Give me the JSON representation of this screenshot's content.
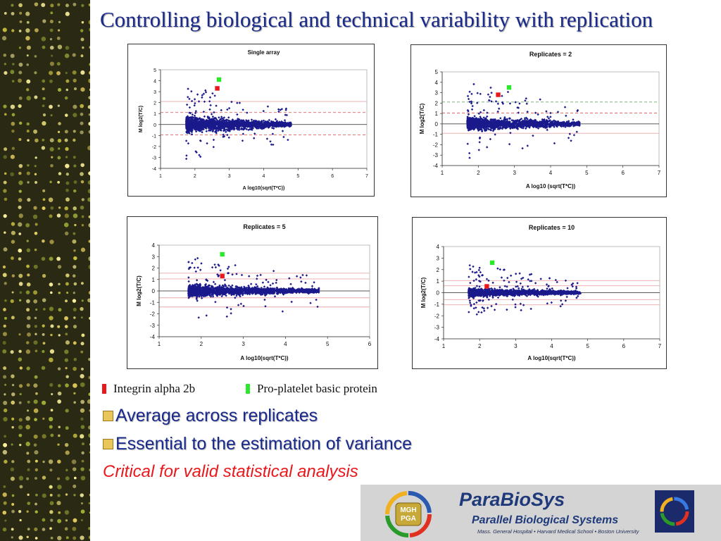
{
  "slide": {
    "title": "Controlling biological and technical variability with replication",
    "legend": [
      {
        "label": "Integrin alpha 2b",
        "color": "#e8181c"
      },
      {
        "label": "Pro-platelet basic protein",
        "color": "#2ae82a"
      }
    ],
    "bullets": [
      "Average across replicates",
      "Essential to the estimation of variance"
    ],
    "note": "Critical for valid statistical analysis"
  },
  "colors": {
    "points": "#1a1a8c",
    "red_line": "#e06060",
    "green_line": "#6aa86a",
    "pink_line": "#e8a8a8",
    "title": "#1a2a8c"
  },
  "logo": {
    "name": "ParaBioSys",
    "subtitle": "Parallel Biological Systems",
    "institutions": "Mass. General Hospital • Harvard Medical School • Boston University",
    "badge_line1": "MGH",
    "badge_line2": "PGA"
  },
  "chart_data": [
    {
      "type": "scatter",
      "title": "Single array",
      "xlabel": "A   log10(sqrt(T*C))",
      "ylabel": "M   log2(T/C)",
      "xlim": [
        1,
        7
      ],
      "ylim": [
        -4,
        5
      ],
      "xticks": [
        1,
        2,
        3,
        4,
        5,
        6,
        7
      ],
      "yticks": [
        -4,
        -3,
        -2,
        -1,
        0,
        1,
        2,
        3,
        4,
        5
      ],
      "grid": true,
      "reference_lines": [
        {
          "y": 1.1,
          "style": "dashed",
          "color": "red"
        },
        {
          "y": -0.95,
          "style": "dashed",
          "color": "red"
        },
        {
          "y": 2.1,
          "style": "solid",
          "color": "pink"
        }
      ],
      "highlight": [
        {
          "gene": "Integrin alpha 2b",
          "x": 2.65,
          "y": 3.3
        },
        {
          "gene": "Pro-platelet basic protein",
          "x": 2.7,
          "y": 4.1
        }
      ],
      "cloud": {
        "x_range": [
          1.75,
          4.8
        ],
        "spread_low_x": 1.6,
        "spread_high_x": 0.3,
        "max_y": 3.6,
        "min_y": -3.2
      }
    },
    {
      "type": "scatter",
      "title": "Replicates = 2",
      "xlabel": "A log10 (sqrt(T*C))",
      "ylabel": "M log2(T/C)",
      "xlim": [
        1,
        7
      ],
      "ylim": [
        -4,
        5
      ],
      "xticks": [
        1,
        2,
        3,
        4,
        5,
        6,
        7
      ],
      "yticks": [
        -4,
        -3,
        -2,
        -1,
        0,
        1,
        2,
        3,
        4,
        5
      ],
      "grid": true,
      "reference_lines": [
        {
          "y": 2.1,
          "style": "dashed",
          "color": "green"
        },
        {
          "y": 1.05,
          "style": "dashed",
          "color": "red"
        },
        {
          "y": -0.9,
          "style": "solid",
          "color": "pink"
        }
      ],
      "highlight": [
        {
          "gene": "Integrin alpha 2b",
          "x": 2.55,
          "y": 2.8
        },
        {
          "gene": "Pro-platelet basic protein",
          "x": 2.85,
          "y": 3.5
        }
      ],
      "cloud": {
        "x_range": [
          1.7,
          4.8
        ],
        "spread_low_x": 1.3,
        "spread_high_x": 0.3,
        "max_y": 4.0,
        "min_y": -3.3
      }
    },
    {
      "type": "scatter",
      "title": "Replicates = 5",
      "xlabel": "A log10(sqrt(T*C))",
      "ylabel": "M log2(T/C)",
      "xlim": [
        1,
        6
      ],
      "ylim": [
        -4,
        4
      ],
      "xticks": [
        1,
        2,
        3,
        4,
        5,
        6
      ],
      "yticks": [
        -4,
        -3,
        -2,
        -1,
        0,
        1,
        2,
        3,
        4
      ],
      "grid": true,
      "reference_lines": [
        {
          "y": 1.55,
          "style": "solid",
          "color": "pink"
        },
        {
          "y": 1.05,
          "style": "solid",
          "color": "pink"
        },
        {
          "y": -0.6,
          "style": "solid",
          "color": "pink"
        },
        {
          "y": -1.4,
          "style": "solid",
          "color": "pink"
        }
      ],
      "highlight": [
        {
          "gene": "Integrin alpha 2b",
          "x": 2.5,
          "y": 1.3
        },
        {
          "gene": "Pro-platelet basic protein",
          "x": 2.5,
          "y": 3.2
        }
      ],
      "cloud": {
        "x_range": [
          1.7,
          4.8
        ],
        "spread_low_x": 1.0,
        "spread_high_x": 0.25,
        "max_y": 3.0,
        "min_y": -2.8
      }
    },
    {
      "type": "scatter",
      "title": "Replicates = 10",
      "xlabel": "A log10(sqrt(T*C))",
      "ylabel": "M log2(T/C)",
      "xlim": [
        1,
        7
      ],
      "ylim": [
        -4,
        4
      ],
      "xticks": [
        1,
        2,
        3,
        4,
        5,
        6,
        7
      ],
      "yticks": [
        -4,
        -3,
        -2,
        -1,
        0,
        1,
        2,
        3,
        4
      ],
      "grid": true,
      "reference_lines": [
        {
          "y": 1.05,
          "style": "solid",
          "color": "pink"
        },
        {
          "y": 0.6,
          "style": "solid",
          "color": "pink"
        },
        {
          "y": -0.6,
          "style": "solid",
          "color": "pink"
        },
        {
          "y": -1.05,
          "style": "solid",
          "color": "pink"
        }
      ],
      "highlight": [
        {
          "gene": "Integrin alpha 2b",
          "x": 2.2,
          "y": 0.55
        },
        {
          "gene": "Pro-platelet basic protein",
          "x": 2.35,
          "y": 2.6
        }
      ],
      "cloud": {
        "x_range": [
          1.7,
          4.8
        ],
        "spread_low_x": 0.7,
        "spread_high_x": 0.2,
        "max_y": 2.5,
        "min_y": -2.0
      }
    }
  ]
}
